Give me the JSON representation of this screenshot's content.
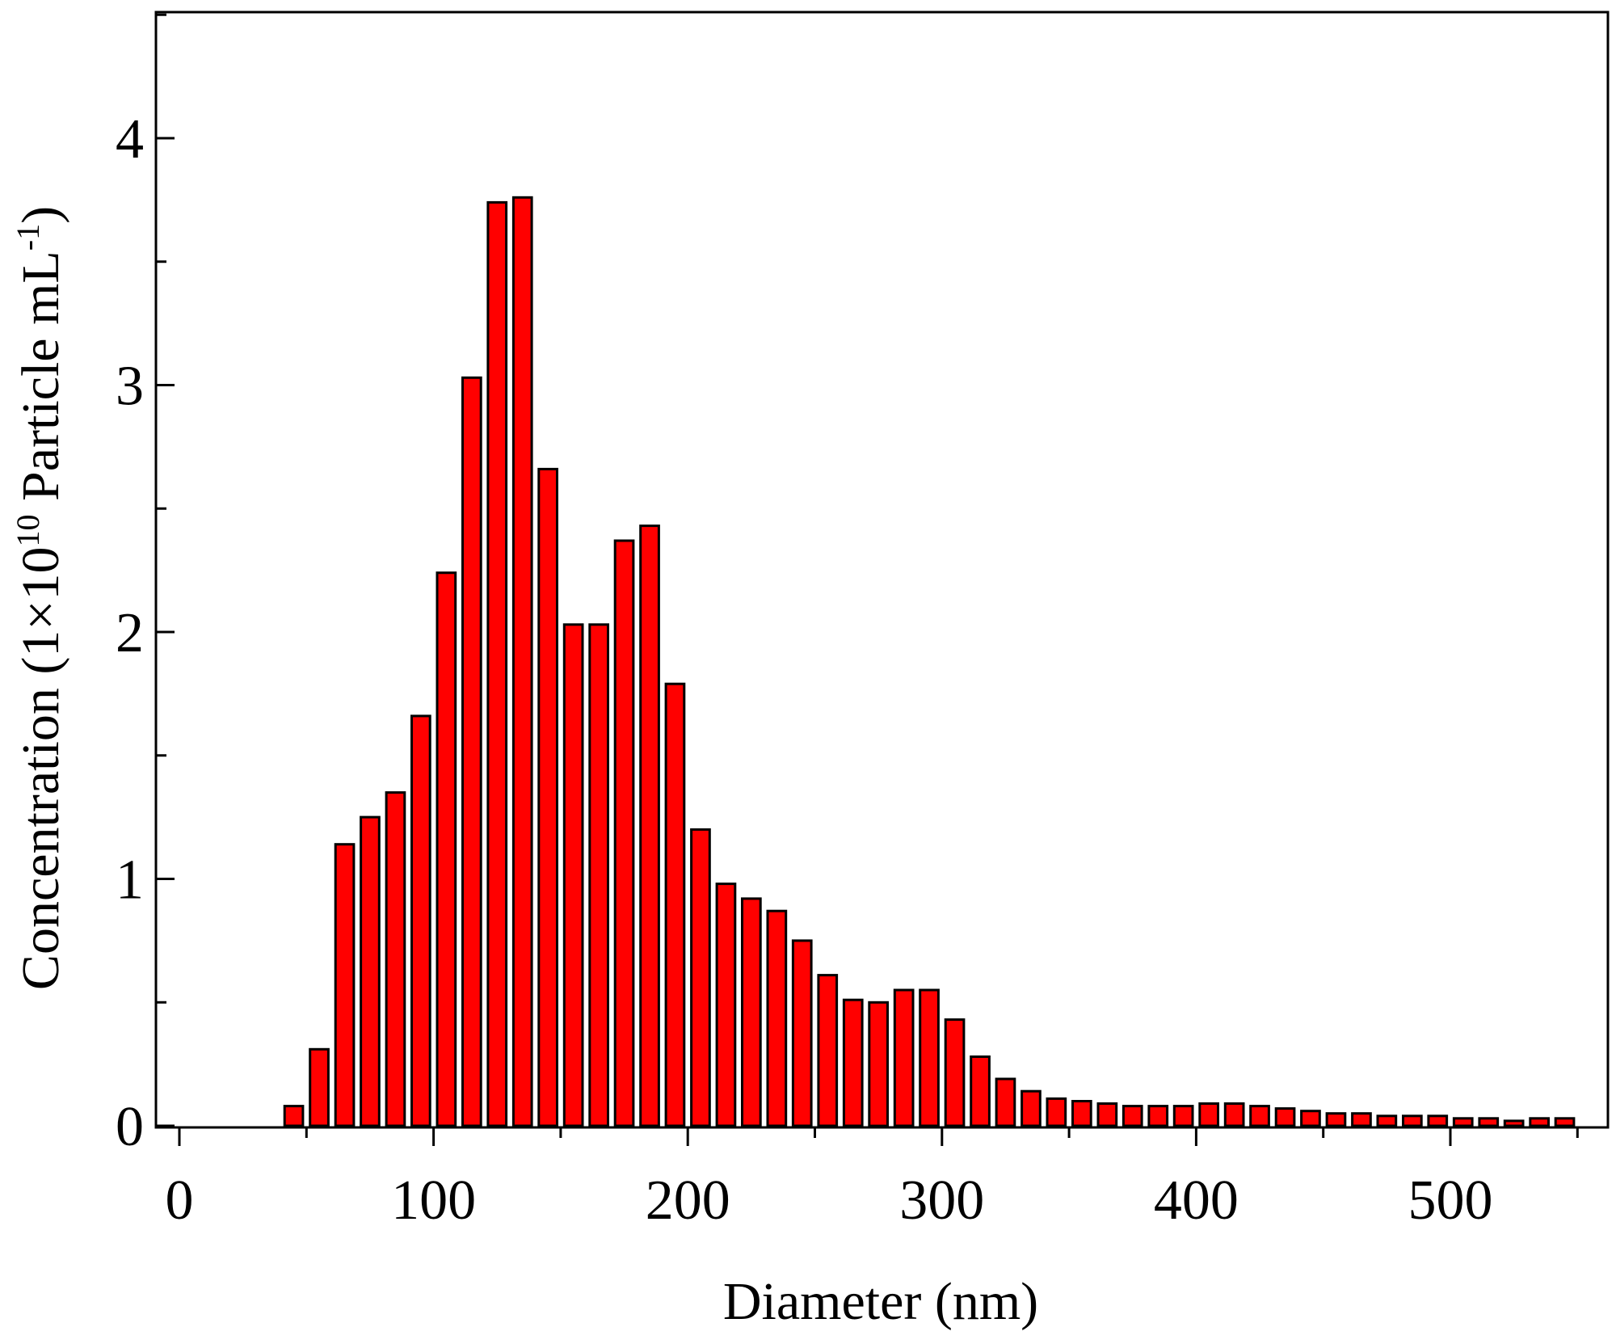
{
  "chart_data": {
    "type": "bar",
    "xlabel": "Diameter (nm)",
    "ylabel": {
      "prefix": "Concentration (1×10",
      "exp1": "10",
      "middle": " Particle mL",
      "exp2": "-1",
      "suffix": ")"
    },
    "xlim": [
      0,
      550
    ],
    "ylim": [
      0,
      4.5
    ],
    "xticks": [
      "0",
      "100",
      "200",
      "300",
      "400",
      "500"
    ],
    "yticks": [
      "0",
      "1",
      "2",
      "3",
      "4"
    ],
    "grid": false,
    "bar_color": "#ff0000",
    "x": [
      45,
      55,
      65,
      75,
      85,
      95,
      105,
      115,
      125,
      135,
      145,
      155,
      165,
      175,
      185,
      195,
      205,
      215,
      225,
      235,
      245,
      255,
      265,
      275,
      285,
      295,
      305,
      315,
      325,
      335,
      345,
      355,
      365,
      375,
      385,
      395,
      405,
      415,
      425,
      435,
      445,
      455,
      465,
      475,
      485,
      495,
      505,
      515,
      525,
      535,
      545
    ],
    "values": [
      0.08,
      0.31,
      1.14,
      1.25,
      1.35,
      1.66,
      2.24,
      3.03,
      3.74,
      3.76,
      2.66,
      2.03,
      2.03,
      2.37,
      2.43,
      1.79,
      1.2,
      0.98,
      0.92,
      0.87,
      0.75,
      0.61,
      0.51,
      0.5,
      0.55,
      0.55,
      0.43,
      0.28,
      0.19,
      0.14,
      0.11,
      0.1,
      0.09,
      0.08,
      0.08,
      0.08,
      0.09,
      0.09,
      0.08,
      0.07,
      0.06,
      0.05,
      0.05,
      0.04,
      0.04,
      0.04,
      0.03,
      0.03,
      0.02,
      0.03,
      0.03
    ]
  }
}
